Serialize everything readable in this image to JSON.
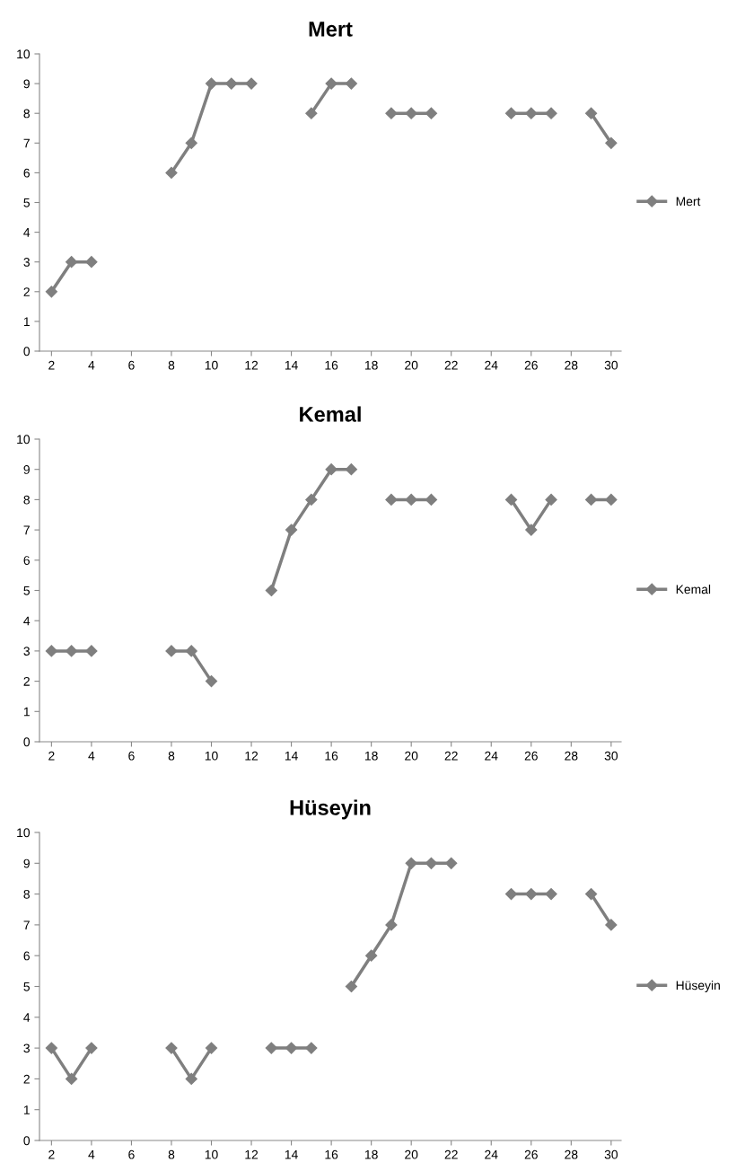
{
  "chart_data": [
    {
      "type": "line",
      "title": "Mert",
      "x": [
        2,
        3,
        4,
        5,
        6,
        7,
        8,
        9,
        10,
        11,
        12,
        13,
        14,
        15,
        16,
        17,
        18,
        19,
        20,
        21,
        22,
        23,
        24,
        25,
        26,
        27,
        28,
        29,
        30
      ],
      "series": [
        {
          "name": "Mert",
          "color": "#7f7f7f",
          "values": [
            2,
            3,
            3,
            null,
            null,
            null,
            6,
            7,
            9,
            9,
            9,
            null,
            null,
            8,
            9,
            9,
            null,
            8,
            8,
            8,
            null,
            null,
            null,
            8,
            8,
            8,
            null,
            8,
            7
          ]
        }
      ],
      "xlim": [
        1.4,
        30.5
      ],
      "xticks": [
        2,
        4,
        6,
        8,
        10,
        12,
        14,
        16,
        18,
        20,
        22,
        24,
        26,
        28,
        30
      ],
      "ylim": [
        0,
        10
      ],
      "yticks": [
        0,
        1,
        2,
        3,
        4,
        5,
        6,
        7,
        8,
        9,
        10
      ],
      "grid": false,
      "legend": "right",
      "marker": "diamond",
      "line_style": "solid"
    },
    {
      "type": "line",
      "title": "Kemal",
      "x": [
        2,
        3,
        4,
        5,
        6,
        7,
        8,
        9,
        10,
        11,
        12,
        13,
        14,
        15,
        16,
        17,
        18,
        19,
        20,
        21,
        22,
        23,
        24,
        25,
        26,
        27,
        28,
        29,
        30
      ],
      "series": [
        {
          "name": "Kemal",
          "color": "#7f7f7f",
          "values": [
            3,
            3,
            3,
            null,
            null,
            null,
            3,
            3,
            2,
            null,
            null,
            5,
            7,
            8,
            9,
            9,
            null,
            8,
            8,
            8,
            null,
            null,
            null,
            8,
            7,
            8,
            null,
            8,
            8
          ]
        }
      ],
      "xlim": [
        1.4,
        30.5
      ],
      "xticks": [
        2,
        4,
        6,
        8,
        10,
        12,
        14,
        16,
        18,
        20,
        22,
        24,
        26,
        28,
        30
      ],
      "ylim": [
        0,
        10
      ],
      "yticks": [
        0,
        1,
        2,
        3,
        4,
        5,
        6,
        7,
        8,
        9,
        10
      ],
      "grid": false,
      "legend": "right",
      "marker": "diamond",
      "line_style": "solid"
    },
    {
      "type": "line",
      "title": "Hüseyin",
      "x": [
        2,
        3,
        4,
        5,
        6,
        7,
        8,
        9,
        10,
        11,
        12,
        13,
        14,
        15,
        16,
        17,
        18,
        19,
        20,
        21,
        22,
        23,
        24,
        25,
        26,
        27,
        28,
        29,
        30
      ],
      "series": [
        {
          "name": "Hüseyin",
          "color": "#7f7f7f",
          "values": [
            3,
            2,
            3,
            null,
            null,
            null,
            3,
            2,
            3,
            null,
            null,
            3,
            3,
            3,
            null,
            5,
            6,
            7,
            9,
            9,
            9,
            null,
            null,
            8,
            8,
            8,
            null,
            8,
            7
          ]
        }
      ],
      "xlim": [
        1.4,
        30.5
      ],
      "xticks": [
        2,
        4,
        6,
        8,
        10,
        12,
        14,
        16,
        18,
        20,
        22,
        24,
        26,
        28,
        30
      ],
      "ylim": [
        0,
        10
      ],
      "yticks": [
        0,
        1,
        2,
        3,
        4,
        5,
        6,
        7,
        8,
        9,
        10
      ],
      "grid": false,
      "legend": "right",
      "marker": "diamond",
      "line_style": "solid"
    }
  ]
}
